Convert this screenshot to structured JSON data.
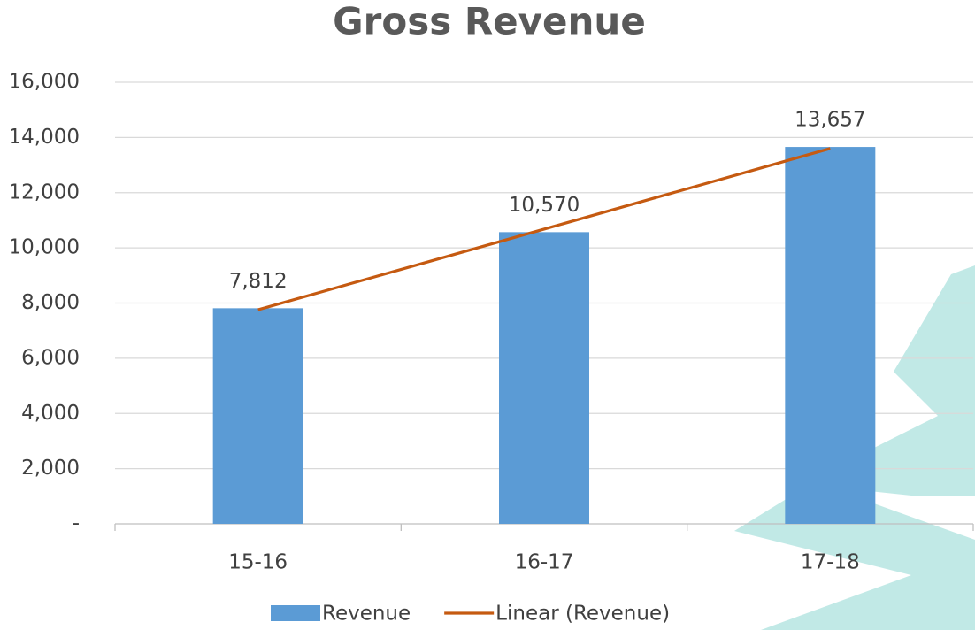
{
  "chart_data": {
    "type": "bar",
    "title": "Gross Revenue",
    "categories": [
      "15-16",
      "16-17",
      "17-18"
    ],
    "series": [
      {
        "name": "Revenue",
        "type": "bar",
        "color": "#5b9bd5",
        "values": [
          7812,
          10570,
          13657
        ],
        "value_labels": [
          "7,812",
          "10,570",
          "13,657"
        ]
      },
      {
        "name": "Linear (Revenue)",
        "type": "line",
        "color": "#c55a11",
        "values": [
          7757,
          10680,
          13602
        ]
      }
    ],
    "ylim": [
      0,
      16000
    ],
    "yticks": [
      {
        "value": 0,
        "label": "-"
      },
      {
        "value": 2000,
        "label": "2,000"
      },
      {
        "value": 4000,
        "label": "4,000"
      },
      {
        "value": 6000,
        "label": "6,000"
      },
      {
        "value": 8000,
        "label": "8,000"
      },
      {
        "value": 10000,
        "label": "10,000"
      },
      {
        "value": 12000,
        "label": "12,000"
      },
      {
        "value": 14000,
        "label": "14,000"
      },
      {
        "value": 16000,
        "label": "16,000"
      }
    ],
    "grid": true,
    "legend": "bottom"
  }
}
